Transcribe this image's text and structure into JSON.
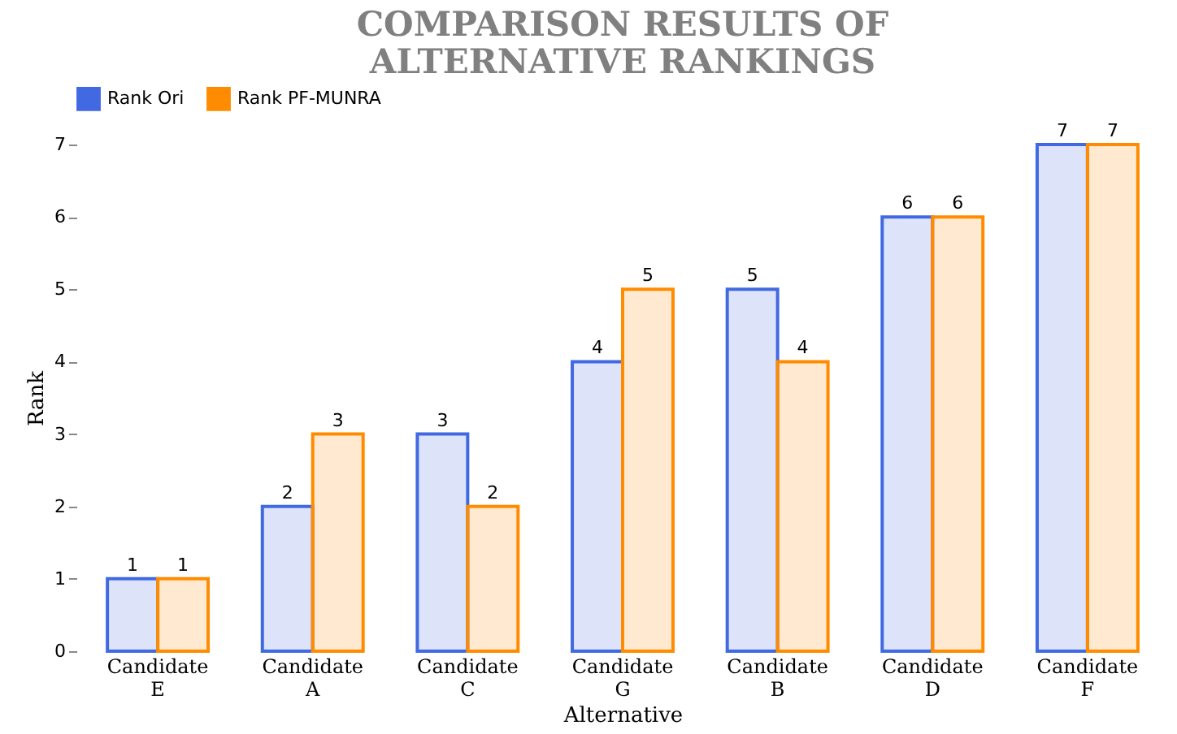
{
  "chart_data": {
    "type": "bar",
    "title": "COMPARISON RESULTS OF ALTERNATIVE RANKINGS",
    "xlabel": "Alternative",
    "ylabel": "Rank",
    "categories": [
      "Candidate E",
      "Candidate A",
      "Candidate C",
      "Candidate G",
      "Candidate B",
      "Candidate D",
      "Candidate F"
    ],
    "series": [
      {
        "name": "Rank Ori",
        "color": "#4169e1",
        "values": [
          1,
          2,
          3,
          4,
          5,
          6,
          7
        ]
      },
      {
        "name": "Rank PF-MUNRA",
        "color": "#ff8c00",
        "values": [
          1,
          3,
          2,
          5,
          4,
          6,
          7
        ]
      }
    ],
    "ylim": [
      0,
      7
    ],
    "yticks": [
      0,
      1,
      2,
      3,
      4,
      5,
      6,
      7
    ],
    "data_labels": true,
    "legend": "top",
    "grid": false
  }
}
